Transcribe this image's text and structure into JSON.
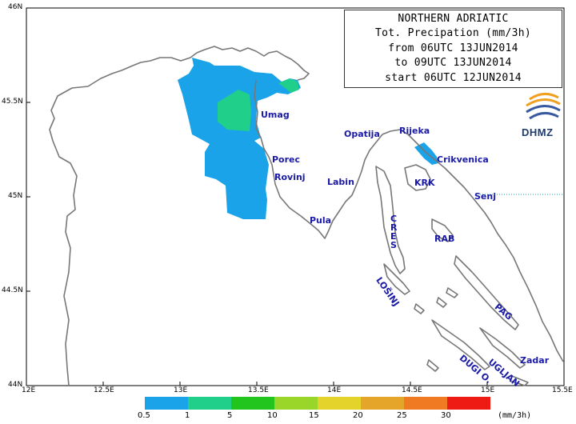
{
  "title_lines": [
    "NORTHERN ADRIATIC",
    "Tot. Precipation (mm/3h)",
    "from 06UTC 13JUN2014",
    "to 09UTC 13JUN2014",
    "start 06UTC 12JUN2014"
  ],
  "logo": {
    "text": "DHMZ",
    "colors": [
      "#f0a020",
      "#3a5aa0"
    ]
  },
  "lat_labels": [
    "46N",
    "45.5N",
    "45N",
    "44.5N",
    "44N"
  ],
  "lon_labels": [
    "12E",
    "12.5E",
    "13E",
    "13.5E",
    "14E",
    "14.5E",
    "15E",
    "15.5E"
  ],
  "places": {
    "umag": "Umag",
    "porec": "Porec",
    "rovinj": "Rovinj",
    "pula": "Pula",
    "labin": "Labin",
    "opatija": "Opatija",
    "rijeka": "Rijeka",
    "crikvenica": "Crikvenica",
    "krk": "KRK",
    "senj": "Senj",
    "cres": "CRES",
    "rab": "RAB",
    "losinj": "LOŠINJ",
    "pag": "PAG",
    "ugljan": "UGLJAN",
    "dugi_o": "DUGI O.",
    "zadar": "Zadar"
  },
  "legend": {
    "unit": "(mm/3h)",
    "labels": [
      "0.5",
      "1",
      "5",
      "10",
      "15",
      "20",
      "25",
      "30"
    ],
    "colors": [
      "#1aa3e8",
      "#1fcf8a",
      "#22c41e",
      "#9ad52a",
      "#e3d32a",
      "#e4a52a",
      "#ef7a22",
      "#ee1a14"
    ]
  },
  "colors": {
    "coast": "#777777",
    "precip_low": "#1aa3e8",
    "precip_mid": "#1fcf8a",
    "place_text": "#1a1aa6"
  }
}
